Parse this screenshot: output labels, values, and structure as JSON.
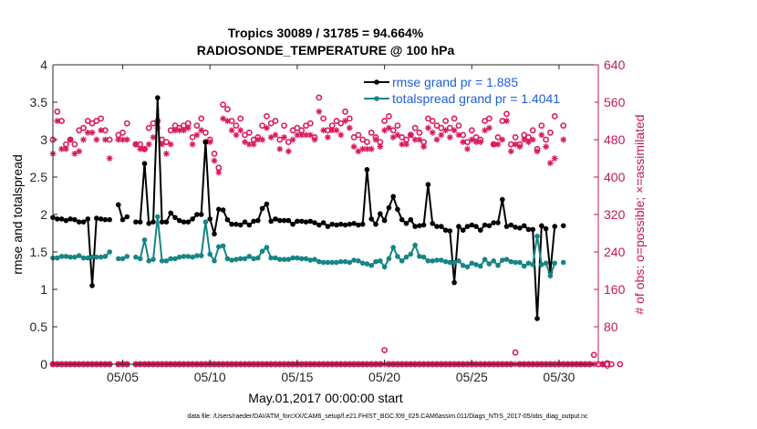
{
  "chart_data": {
    "type": "line",
    "title_line1": "Tropics 30089 / 31785 = 94.664%",
    "title_line2": "RADIOSONDE_TEMPERATURE @ 100 hPa",
    "xlabel": "May.01,2017 00:00:00 start",
    "ylabel_left": "rmse and totalspread",
    "ylabel_right": "# of obs: o=possible; ×=assimilated",
    "footnote": "data file: /Users/raeder/DAI/ATM_forcXX/CAM6_setup/f.e21.FHIST_BGC.f09_025.CAM6assim.011/Diags_NTrS_2017-05/obs_diag_output.nc",
    "xlim": [
      1.0,
      32.25
    ],
    "ylim_left": [
      0,
      4
    ],
    "ylim_right": [
      0,
      640
    ],
    "yticks_left": [
      "0",
      "0.5",
      "1",
      "1.5",
      "2",
      "2.5",
      "3",
      "3.5",
      "4"
    ],
    "yticks_right": [
      "0",
      "80",
      "160",
      "240",
      "320",
      "400",
      "480",
      "560",
      "640"
    ],
    "xticks": [
      {
        "day": 5,
        "label": "05/05"
      },
      {
        "day": 10,
        "label": "05/10"
      },
      {
        "day": 15,
        "label": "05/15"
      },
      {
        "day": 20,
        "label": "05/20"
      },
      {
        "day": 25,
        "label": "05/25"
      },
      {
        "day": 30,
        "label": "05/30"
      }
    ],
    "legend": {
      "rmse_label": "rmse grand pr = 1.885",
      "spread_label": "totalspread grand pr = 1.4041"
    },
    "colors": {
      "rmse": "#000000",
      "spread": "#168585",
      "obs": "#d81b60",
      "right_axis": "#c2185b",
      "legend_text": "#1f5fd6"
    },
    "x_start": 1.0,
    "x_step": 0.25,
    "rmse": [
      1.96,
      1.94,
      1.94,
      1.92,
      1.94,
      1.93,
      1.9,
      1.9,
      1.94,
      1.05,
      1.95,
      1.94,
      1.93,
      1.93,
      null,
      2.13,
      1.93,
      1.97,
      null,
      1.9,
      1.9,
      2.68,
      1.88,
      1.9,
      3.56,
      1.9,
      1.9,
      2.02,
      1.96,
      1.92,
      1.9,
      1.9,
      1.94,
      2.0,
      2.0,
      2.97,
      1.94,
      1.74,
      2.07,
      2.06,
      1.93,
      1.87,
      1.87,
      1.86,
      1.9,
      1.86,
      1.91,
      1.92,
      2.08,
      2.14,
      1.91,
      1.94,
      1.92,
      1.92,
      1.92,
      1.87,
      1.91,
      1.91,
      1.9,
      1.91,
      1.89,
      1.86,
      1.89,
      1.84,
      1.87,
      1.86,
      1.87,
      1.86,
      1.87,
      1.88,
      1.86,
      1.87,
      2.6,
      1.94,
      1.87,
      2.01,
      1.92,
      2.09,
      2.24,
      2.07,
      1.93,
      1.88,
      1.93,
      1.84,
      1.85,
      1.86,
      2.4,
      1.88,
      1.84,
      1.84,
      1.79,
      1.78,
      1.09,
      1.84,
      1.79,
      1.84,
      1.86,
      1.84,
      1.79,
      1.86,
      1.85,
      1.89,
      1.89,
      2.2,
      1.84,
      1.86,
      1.83,
      1.82,
      1.85,
      1.8,
      1.8,
      0.61,
      1.85,
      1.81,
      1.23,
      1.84,
      null,
      1.85
    ],
    "spread": [
      1.42,
      1.42,
      1.44,
      1.44,
      1.43,
      1.43,
      1.45,
      1.42,
      1.42,
      1.43,
      1.43,
      1.43,
      1.44,
      1.5,
      null,
      1.41,
      1.41,
      1.44,
      null,
      1.43,
      1.41,
      1.66,
      1.38,
      1.4,
      1.97,
      1.38,
      1.38,
      1.41,
      1.41,
      1.43,
      1.44,
      1.44,
      1.43,
      1.45,
      1.45,
      1.9,
      1.47,
      1.38,
      1.57,
      1.58,
      1.41,
      1.39,
      1.4,
      1.41,
      1.41,
      1.44,
      1.41,
      1.42,
      1.51,
      1.56,
      1.42,
      1.42,
      1.4,
      1.4,
      1.4,
      1.42,
      1.42,
      1.41,
      1.41,
      1.39,
      1.4,
      1.37,
      1.36,
      1.36,
      1.36,
      1.36,
      1.37,
      1.37,
      1.36,
      1.39,
      1.38,
      1.35,
      1.34,
      1.32,
      1.37,
      1.38,
      1.3,
      1.41,
      1.56,
      1.44,
      1.38,
      1.43,
      1.47,
      1.59,
      1.44,
      1.43,
      1.38,
      1.38,
      1.39,
      1.39,
      1.37,
      1.36,
      1.36,
      1.38,
      1.32,
      1.3,
      1.35,
      1.33,
      1.31,
      1.4,
      1.34,
      1.38,
      1.32,
      1.39,
      1.4,
      1.37,
      1.36,
      1.36,
      1.31,
      1.35,
      1.33,
      1.71,
      1.33,
      1.35,
      1.18,
      1.35,
      null,
      1.36
    ],
    "possible": [
      480,
      540,
      520,
      470,
      480,
      470,
      500,
      505,
      520,
      515,
      520,
      525,
      500,
      480,
      null,
      490,
      495,
      515,
      null,
      470,
      470,
      460,
      505,
      515,
      520,
      480,
      475,
      500,
      510,
      505,
      510,
      515,
      485,
      510,
      525,
      495,
      480,
      450,
      420,
      555,
      545,
      520,
      510,
      525,
      490,
      495,
      480,
      485,
      510,
      530,
      515,
      520,
      480,
      510,
      475,
      500,
      505,
      500,
      510,
      515,
      485,
      570,
      525,
      500,
      510,
      520,
      515,
      540,
      525,
      485,
      490,
      480,
      475,
      495,
      485,
      475,
      520,
      530,
      500,
      510,
      485,
      480,
      490,
      505,
      495,
      475,
      525,
      520,
      510,
      505,
      520,
      505,
      525,
      510,
      490,
      475,
      500,
      485,
      480,
      520,
      525,
      470,
      485,
      520,
      535,
      470,
      485,
      470,
      490,
      485,
      500,
      460,
      510,
      480,
      495,
      530,
      null,
      510
    ],
    "assimilated": [
      450,
      520,
      460,
      460,
      480,
      450,
      455,
      480,
      495,
      495,
      480,
      500,
      480,
      440,
      null,
      480,
      480,
      480,
      null,
      470,
      460,
      460,
      470,
      485,
      505,
      470,
      450,
      470,
      500,
      500,
      500,
      505,
      470,
      490,
      500,
      475,
      475,
      435,
      410,
      525,
      520,
      500,
      490,
      500,
      475,
      470,
      470,
      480,
      480,
      505,
      485,
      490,
      460,
      485,
      455,
      480,
      490,
      490,
      490,
      490,
      480,
      540,
      500,
      485,
      500,
      500,
      490,
      520,
      505,
      465,
      455,
      460,
      460,
      460,
      480,
      465,
      500,
      505,
      485,
      490,
      470,
      470,
      490,
      480,
      480,
      465,
      505,
      495,
      480,
      490,
      500,
      485,
      500,
      490,
      475,
      460,
      480,
      475,
      475,
      500,
      505,
      470,
      470,
      480,
      520,
      455,
      470,
      465,
      480,
      475,
      480,
      455,
      490,
      465,
      430,
      440,
      null,
      480
    ],
    "possible_bottom": [
      0,
      0,
      0,
      0,
      0,
      0,
      0,
      0,
      0,
      0,
      0,
      0,
      0,
      0,
      null,
      0,
      0,
      0,
      null,
      0,
      0,
      0,
      0,
      0,
      0,
      0,
      0,
      0,
      0,
      0,
      0,
      0,
      0,
      0,
      0,
      0,
      0,
      0,
      0,
      0,
      0,
      0,
      0,
      0,
      0,
      0,
      0,
      0,
      0,
      0,
      0,
      0,
      0,
      0,
      0,
      0,
      0,
      0,
      0,
      0,
      0,
      0,
      0,
      0,
      0,
      0,
      0,
      0,
      0,
      0,
      0,
      0,
      0,
      0,
      0,
      0,
      30,
      0,
      0,
      0,
      0,
      0,
      0,
      0,
      0,
      0,
      0,
      0,
      0,
      0,
      0,
      0,
      0,
      0,
      0,
      0,
      0,
      0,
      0,
      0,
      0,
      0,
      0,
      0,
      0,
      0,
      25,
      0,
      0,
      0,
      0,
      0,
      0,
      0,
      0,
      0,
      0,
      0,
      0,
      0,
      0,
      0,
      0,
      0,
      20,
      0,
      0,
      0,
      0,
      null,
      0
    ],
    "assimilated_bottom": [
      0,
      0,
      0,
      0,
      0,
      0,
      0,
      0,
      0,
      0,
      0,
      0,
      0,
      0,
      null,
      0,
      0,
      0,
      null,
      0,
      0,
      0,
      0,
      0,
      0,
      0,
      0,
      0,
      0,
      0,
      0,
      0,
      0,
      0,
      0,
      0,
      0,
      0,
      0,
      0,
      0,
      0,
      0,
      0,
      0,
      0,
      0,
      0,
      0,
      0,
      0,
      0,
      0,
      0,
      0,
      0,
      0,
      0,
      0,
      0,
      0,
      0,
      0,
      0,
      0,
      0,
      0,
      0,
      0,
      0,
      0,
      0,
      0,
      0,
      0,
      0,
      0,
      0,
      0,
      0,
      0,
      0,
      0,
      0,
      0,
      0,
      0,
      0,
      0,
      0,
      0,
      0,
      0,
      0,
      0,
      0,
      0,
      0,
      0,
      0,
      0,
      0,
      0,
      0,
      0,
      0,
      0,
      0,
      0,
      0,
      0,
      0,
      0,
      0,
      0,
      0,
      0,
      0,
      0,
      0,
      0,
      0,
      0,
      0,
      0,
      null,
      0
    ]
  }
}
